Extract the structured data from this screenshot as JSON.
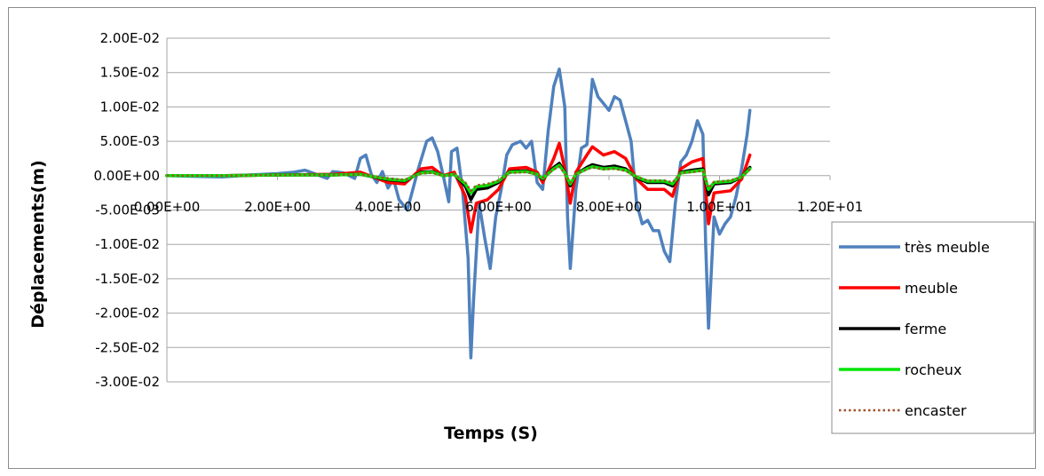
{
  "chart_data": {
    "type": "line",
    "title": "",
    "xlabel": "Temps (S)",
    "ylabel": "Déplacements(m)",
    "xlim": [
      0,
      12
    ],
    "ylim": [
      -0.03,
      0.02
    ],
    "x_ticks": [
      0,
      2,
      4,
      6,
      8,
      10,
      12
    ],
    "x_tick_labels": [
      "0.00E+00",
      "2.00E+00",
      "4.00E+00",
      "6.00E+00",
      "8.00E+00",
      "1.00E+01",
      "1.20E+01"
    ],
    "y_ticks": [
      0.02,
      0.015,
      0.01,
      0.005,
      0,
      -0.005,
      -0.01,
      -0.015,
      -0.02,
      -0.025,
      -0.03
    ],
    "y_tick_labels": [
      "2.00E-02",
      "1.50E-02",
      "1.00E-02",
      "5.00E-03",
      "0.00E+00",
      "-5.00E-03",
      "-1.00E-02",
      "-1.50E-02",
      "-2.00E-02",
      "-2.50E-02",
      "-3.00E-02"
    ],
    "grid": "horizontal",
    "legend_position": "right",
    "series": [
      {
        "name": "très meuble",
        "color": "#4f81bd",
        "dash": "solid",
        "points": [
          [
            0,
            0
          ],
          [
            0.5,
            -0.0001
          ],
          [
            1.0,
            -0.0002
          ],
          [
            1.5,
            0.0001
          ],
          [
            2.0,
            0.0003
          ],
          [
            2.3,
            0.0005
          ],
          [
            2.5,
            0.0008
          ],
          [
            2.7,
            0.0002
          ],
          [
            2.9,
            -0.0004
          ],
          [
            3.0,
            0.0006
          ],
          [
            3.2,
            0.0004
          ],
          [
            3.4,
            -0.0004
          ],
          [
            3.5,
            0.0025
          ],
          [
            3.6,
            0.003
          ],
          [
            3.7,
            0.0002
          ],
          [
            3.8,
            -0.001
          ],
          [
            3.9,
            0.0006
          ],
          [
            4.0,
            -0.0018
          ],
          [
            4.1,
            -0.0005
          ],
          [
            4.2,
            -0.0035
          ],
          [
            4.35,
            -0.005
          ],
          [
            4.45,
            -0.002
          ],
          [
            4.55,
            0.001
          ],
          [
            4.7,
            0.005
          ],
          [
            4.8,
            0.0055
          ],
          [
            4.9,
            0.0035
          ],
          [
            5.0,
            0.0
          ],
          [
            5.1,
            -0.0038
          ],
          [
            5.15,
            0.0035
          ],
          [
            5.25,
            0.004
          ],
          [
            5.35,
            -0.002
          ],
          [
            5.45,
            -0.012
          ],
          [
            5.5,
            -0.0265
          ],
          [
            5.55,
            -0.018
          ],
          [
            5.65,
            -0.004
          ],
          [
            5.75,
            -0.009
          ],
          [
            5.85,
            -0.0135
          ],
          [
            5.95,
            -0.006
          ],
          [
            6.05,
            -0.002
          ],
          [
            6.15,
            0.003
          ],
          [
            6.25,
            0.0045
          ],
          [
            6.4,
            0.005
          ],
          [
            6.5,
            0.004
          ],
          [
            6.6,
            0.005
          ],
          [
            6.7,
            -0.001
          ],
          [
            6.8,
            -0.002
          ],
          [
            6.9,
            0.0065
          ],
          [
            7.0,
            0.013
          ],
          [
            7.1,
            0.0155
          ],
          [
            7.2,
            0.01
          ],
          [
            7.25,
            -0.006
          ],
          [
            7.3,
            -0.0135
          ],
          [
            7.4,
            -0.002
          ],
          [
            7.5,
            0.004
          ],
          [
            7.6,
            0.0045
          ],
          [
            7.7,
            0.014
          ],
          [
            7.8,
            0.0115
          ],
          [
            7.9,
            0.0105
          ],
          [
            8.0,
            0.0095
          ],
          [
            8.1,
            0.0115
          ],
          [
            8.2,
            0.011
          ],
          [
            8.3,
            0.008
          ],
          [
            8.4,
            0.005
          ],
          [
            8.5,
            -0.004
          ],
          [
            8.6,
            -0.007
          ],
          [
            8.7,
            -0.0065
          ],
          [
            8.8,
            -0.008
          ],
          [
            8.9,
            -0.008
          ],
          [
            9.0,
            -0.011
          ],
          [
            9.1,
            -0.0125
          ],
          [
            9.2,
            -0.004
          ],
          [
            9.3,
            0.002
          ],
          [
            9.4,
            0.003
          ],
          [
            9.5,
            0.005
          ],
          [
            9.6,
            0.008
          ],
          [
            9.7,
            0.006
          ],
          [
            9.75,
            -0.01
          ],
          [
            9.8,
            -0.0222
          ],
          [
            9.9,
            -0.006
          ],
          [
            10.0,
            -0.0085
          ],
          [
            10.1,
            -0.007
          ],
          [
            10.2,
            -0.006
          ],
          [
            10.3,
            -0.003
          ],
          [
            10.4,
            0.001
          ],
          [
            10.5,
            0.006
          ],
          [
            10.55,
            0.0095
          ]
        ]
      },
      {
        "name": "meuble",
        "color": "#ff0000",
        "dash": "solid",
        "points": [
          [
            0,
            0
          ],
          [
            1,
            0
          ],
          [
            2,
            0.0001
          ],
          [
            3,
            0.0002
          ],
          [
            3.5,
            0.0005
          ],
          [
            4.0,
            -0.001
          ],
          [
            4.3,
            -0.0012
          ],
          [
            4.6,
            0.001
          ],
          [
            4.8,
            0.0012
          ],
          [
            5.0,
            0.0
          ],
          [
            5.2,
            0.0005
          ],
          [
            5.4,
            -0.003
          ],
          [
            5.5,
            -0.0082
          ],
          [
            5.6,
            -0.004
          ],
          [
            5.8,
            -0.0035
          ],
          [
            6.0,
            -0.002
          ],
          [
            6.2,
            0.001
          ],
          [
            6.5,
            0.0012
          ],
          [
            6.7,
            0.0005
          ],
          [
            6.8,
            -0.001
          ],
          [
            7.0,
            0.0025
          ],
          [
            7.1,
            0.0047
          ],
          [
            7.2,
            0.001
          ],
          [
            7.3,
            -0.004
          ],
          [
            7.4,
            0.0005
          ],
          [
            7.6,
            0.003
          ],
          [
            7.7,
            0.0042
          ],
          [
            7.9,
            0.003
          ],
          [
            8.1,
            0.0035
          ],
          [
            8.3,
            0.0025
          ],
          [
            8.5,
            -0.0005
          ],
          [
            8.7,
            -0.002
          ],
          [
            9.0,
            -0.002
          ],
          [
            9.15,
            -0.003
          ],
          [
            9.3,
            0.001
          ],
          [
            9.5,
            0.002
          ],
          [
            9.7,
            0.0025
          ],
          [
            9.8,
            -0.007
          ],
          [
            9.9,
            -0.0025
          ],
          [
            10.2,
            -0.0022
          ],
          [
            10.4,
            -0.0005
          ],
          [
            10.55,
            0.003
          ]
        ]
      },
      {
        "name": "ferme",
        "color": "#000000",
        "dash": "solid",
        "points": [
          [
            0,
            0
          ],
          [
            1,
            0
          ],
          [
            2,
            0.0001
          ],
          [
            3,
            0.0001
          ],
          [
            3.5,
            0.0002
          ],
          [
            4.0,
            -0.0006
          ],
          [
            4.3,
            -0.0008
          ],
          [
            4.6,
            0.0005
          ],
          [
            4.8,
            0.0006
          ],
          [
            5.0,
            0.0
          ],
          [
            5.2,
            0.0002
          ],
          [
            5.4,
            -0.0015
          ],
          [
            5.5,
            -0.0035
          ],
          [
            5.6,
            -0.002
          ],
          [
            5.8,
            -0.0018
          ],
          [
            6.0,
            -0.001
          ],
          [
            6.2,
            0.0006
          ],
          [
            6.5,
            0.0007
          ],
          [
            6.7,
            0.0002
          ],
          [
            6.8,
            -0.0005
          ],
          [
            7.0,
            0.0012
          ],
          [
            7.1,
            0.0018
          ],
          [
            7.2,
            0.0005
          ],
          [
            7.3,
            -0.0015
          ],
          [
            7.4,
            0.0002
          ],
          [
            7.6,
            0.0012
          ],
          [
            7.7,
            0.0016
          ],
          [
            7.9,
            0.0012
          ],
          [
            8.1,
            0.0014
          ],
          [
            8.3,
            0.001
          ],
          [
            8.5,
            -0.0003
          ],
          [
            8.7,
            -0.001
          ],
          [
            9.0,
            -0.001
          ],
          [
            9.15,
            -0.0015
          ],
          [
            9.3,
            0.0005
          ],
          [
            9.5,
            0.0008
          ],
          [
            9.7,
            0.001
          ],
          [
            9.8,
            -0.0028
          ],
          [
            9.9,
            -0.0012
          ],
          [
            10.2,
            -0.001
          ],
          [
            10.4,
            -0.0002
          ],
          [
            10.55,
            0.0012
          ]
        ]
      },
      {
        "name": "rocheux",
        "color": "#00e600",
        "dash": "solid",
        "points": [
          [
            0,
            0
          ],
          [
            1,
            0
          ],
          [
            2,
            0.0001
          ],
          [
            3,
            0.0001
          ],
          [
            3.5,
            0.0002
          ],
          [
            4.0,
            -0.0005
          ],
          [
            4.3,
            -0.0007
          ],
          [
            4.6,
            0.0004
          ],
          [
            4.8,
            0.0005
          ],
          [
            5.0,
            0.0
          ],
          [
            5.2,
            0.0002
          ],
          [
            5.4,
            -0.0012
          ],
          [
            5.5,
            -0.0025
          ],
          [
            5.6,
            -0.0016
          ],
          [
            5.8,
            -0.0014
          ],
          [
            6.0,
            -0.0008
          ],
          [
            6.2,
            0.0005
          ],
          [
            6.5,
            0.0006
          ],
          [
            6.7,
            0.0002
          ],
          [
            6.8,
            -0.0004
          ],
          [
            7.0,
            0.001
          ],
          [
            7.1,
            0.0015
          ],
          [
            7.2,
            0.0004
          ],
          [
            7.3,
            -0.0012
          ],
          [
            7.4,
            0.0002
          ],
          [
            7.6,
            0.001
          ],
          [
            7.7,
            0.0013
          ],
          [
            7.9,
            0.001
          ],
          [
            8.1,
            0.0011
          ],
          [
            8.3,
            0.0008
          ],
          [
            8.5,
            -0.0002
          ],
          [
            8.7,
            -0.0008
          ],
          [
            9.0,
            -0.0008
          ],
          [
            9.15,
            -0.0012
          ],
          [
            9.3,
            0.0004
          ],
          [
            9.5,
            0.0006
          ],
          [
            9.7,
            0.0008
          ],
          [
            9.8,
            -0.002
          ],
          [
            9.9,
            -0.001
          ],
          [
            10.2,
            -0.0008
          ],
          [
            10.4,
            -0.0002
          ],
          [
            10.55,
            0.001
          ]
        ]
      },
      {
        "name": "encaster",
        "color": "#a0522d",
        "dash": "dotted",
        "points": [
          [
            0,
            0
          ],
          [
            1,
            0
          ],
          [
            2,
            0.0001
          ],
          [
            3,
            0.0001
          ],
          [
            3.5,
            0.0002
          ],
          [
            4.0,
            -0.0004
          ],
          [
            4.3,
            -0.0006
          ],
          [
            4.6,
            0.0003
          ],
          [
            4.8,
            0.0004
          ],
          [
            5.0,
            0.0
          ],
          [
            5.2,
            0.0002
          ],
          [
            5.4,
            -0.001
          ],
          [
            5.5,
            -0.0022
          ],
          [
            5.6,
            -0.0014
          ],
          [
            5.8,
            -0.0012
          ],
          [
            6.0,
            -0.0007
          ],
          [
            6.2,
            0.0004
          ],
          [
            6.5,
            0.0005
          ],
          [
            6.7,
            0.0002
          ],
          [
            6.8,
            -0.0003
          ],
          [
            7.0,
            0.0009
          ],
          [
            7.1,
            0.0013
          ],
          [
            7.2,
            0.0003
          ],
          [
            7.3,
            -0.001
          ],
          [
            7.4,
            0.0002
          ],
          [
            7.6,
            0.0009
          ],
          [
            7.7,
            0.0012
          ],
          [
            7.9,
            0.0009
          ],
          [
            8.1,
            0.001
          ],
          [
            8.3,
            0.0007
          ],
          [
            8.5,
            -0.0002
          ],
          [
            8.7,
            -0.0007
          ],
          [
            9.0,
            -0.0007
          ],
          [
            9.15,
            -0.001
          ],
          [
            9.3,
            0.0004
          ],
          [
            9.5,
            0.0005
          ],
          [
            9.7,
            0.0007
          ],
          [
            9.8,
            -0.0018
          ],
          [
            9.9,
            -0.0009
          ],
          [
            10.2,
            -0.0007
          ],
          [
            10.4,
            -0.0002
          ],
          [
            10.55,
            0.0009
          ]
        ]
      }
    ]
  }
}
